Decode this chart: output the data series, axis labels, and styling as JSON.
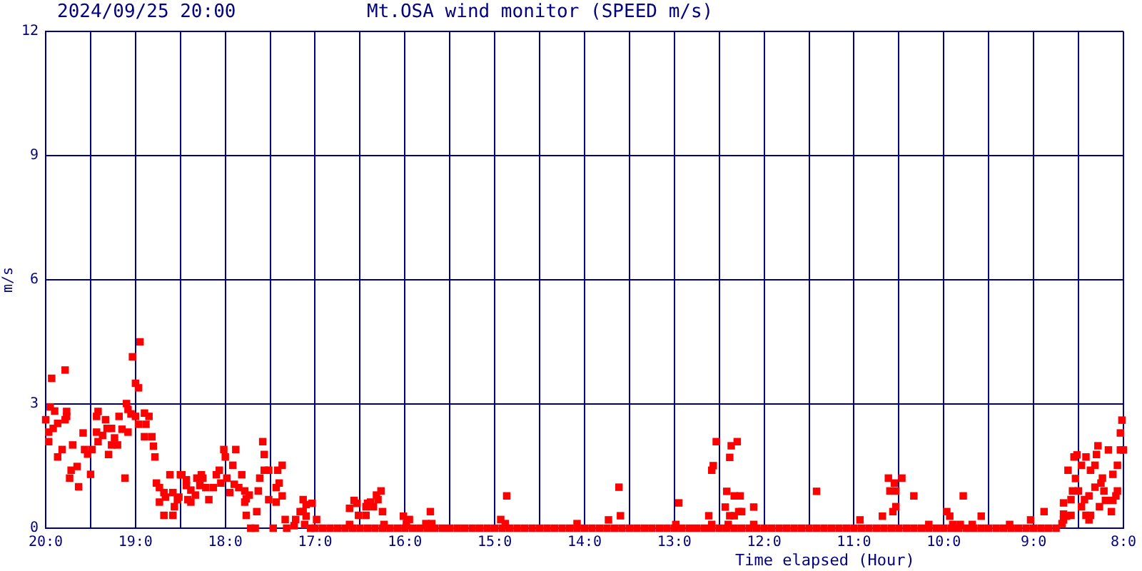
{
  "chart_data": {
    "type": "scatter",
    "title": "Mt.OSA wind monitor (SPEED m/s)",
    "subtitle": "2024/09/25 20:00",
    "xlabel": "Time elapsed (Hour)",
    "ylabel": "m/s",
    "color": "#ff0000",
    "marker": "square",
    "grid": true,
    "xlim": [
      "2024-09-25T20:00",
      "2024-09-25T08:00"
    ],
    "xticks": [
      {
        "value": "2024-09-25T20:00",
        "label": "20:0"
      },
      {
        "value": "2024-09-25T19:30",
        "label": null
      },
      {
        "value": "2024-09-25T19:00",
        "label": "19:0"
      },
      {
        "value": "2024-09-25T18:30",
        "label": null
      },
      {
        "value": "2024-09-25T18:00",
        "label": "18:0"
      },
      {
        "value": "2024-09-25T17:30",
        "label": null
      },
      {
        "value": "2024-09-25T17:00",
        "label": "17:0"
      },
      {
        "value": "2024-09-25T16:30",
        "label": null
      },
      {
        "value": "2024-09-25T16:00",
        "label": "16:0"
      },
      {
        "value": "2024-09-25T15:30",
        "label": null
      },
      {
        "value": "2024-09-25T15:00",
        "label": "15:0"
      },
      {
        "value": "2024-09-25T14:30",
        "label": null
      },
      {
        "value": "2024-09-25T14:00",
        "label": "14:0"
      },
      {
        "value": "2024-09-25T13:30",
        "label": null
      },
      {
        "value": "2024-09-25T13:00",
        "label": "13:0"
      },
      {
        "value": "2024-09-25T12:30",
        "label": null
      },
      {
        "value": "2024-09-25T12:00",
        "label": "12:0"
      },
      {
        "value": "2024-09-25T11:30",
        "label": null
      },
      {
        "value": "2024-09-25T11:00",
        "label": "11:0"
      },
      {
        "value": "2024-09-25T10:30",
        "label": null
      },
      {
        "value": "2024-09-25T10:00",
        "label": "10:0"
      },
      {
        "value": "2024-09-25T09:30",
        "label": null
      },
      {
        "value": "2024-09-25T09:00",
        "label": "9:0"
      },
      {
        "value": "2024-09-25T08:30",
        "label": null
      },
      {
        "value": "2024-09-25T08:00",
        "label": "8:0"
      }
    ],
    "ylim": [
      0,
      12
    ],
    "yticks": [
      0,
      3,
      6,
      9,
      12
    ],
    "x": [
      "2024-09-25T20:00",
      "2024-09-25T19:58",
      "2024-09-25T19:58",
      "2024-09-25T19:57",
      "2024-09-25T19:56",
      "2024-09-25T19:55",
      "2024-09-25T19:54",
      "2024-09-25T19:52",
      "2024-09-25T19:52",
      "2024-09-25T19:49",
      "2024-09-25T19:47",
      "2024-09-25T19:47",
      "2024-09-25T19:46",
      "2024-09-25T19:46",
      "2024-09-25T19:44",
      "2024-09-25T19:43",
      "2024-09-25T19:42",
      "2024-09-25T19:39",
      "2024-09-25T19:38",
      "2024-09-25T19:35",
      "2024-09-25T19:34",
      "2024-09-25T19:32",
      "2024-09-25T19:30",
      "2024-09-25T19:29",
      "2024-09-25T19:26",
      "2024-09-25T19:26",
      "2024-09-25T19:25",
      "2024-09-25T19:25",
      "2024-09-25T19:22",
      "2024-09-25T19:20",
      "2024-09-25T19:19",
      "2024-09-25T19:18",
      "2024-09-25T19:16",
      "2024-09-25T19:16",
      "2024-09-25T19:14",
      "2024-09-25T19:12",
      "2024-09-25T19:11",
      "2024-09-25T19:09",
      "2024-09-25T19:07",
      "2024-09-25T19:06",
      "2024-09-25T19:05",
      "2024-09-25T19:05",
      "2024-09-25T19:03",
      "2024-09-25T19:02",
      "2024-09-25T19:00",
      "2024-09-25T19:00",
      "2024-09-25T18:58",
      "2024-09-25T18:58",
      "2024-09-25T18:57",
      "2024-09-25T18:54",
      "2024-09-25T18:54",
      "2024-09-25T18:53",
      "2024-09-25T18:51",
      "2024-09-25T18:49",
      "2024-09-25T18:48",
      "2024-09-25T18:47",
      "2024-09-25T18:46",
      "2024-09-25T18:44",
      "2024-09-25T18:44",
      "2024-09-25T18:41",
      "2024-09-25T18:41",
      "2024-09-25T18:40",
      "2024-09-25T18:37",
      "2024-09-25T18:35",
      "2024-09-25T18:35",
      "2024-09-25T18:34",
      "2024-09-25T18:32",
      "2024-09-25T18:31",
      "2024-09-25T18:29",
      "2024-09-25T18:26",
      "2024-09-25T18:30",
      "2024-09-25T18:26",
      "2024-09-25T18:25",
      "2024-09-25T18:23",
      "2024-09-25T18:23",
      "2024-09-25T18:20",
      "2024-09-25T18:19",
      "2024-09-25T18:17",
      "2024-09-25T18:16",
      "2024-09-25T18:15",
      "2024-09-25T18:13",
      "2024-09-25T18:11",
      "2024-09-25T18:08",
      "2024-09-25T18:06",
      "2024-09-25T18:04",
      "2024-09-25T18:03",
      "2024-09-25T18:01",
      "2024-09-25T18:00",
      "2024-09-25T17:59",
      "2024-09-25T17:57",
      "2024-09-25T17:55",
      "2024-09-25T17:54",
      "2024-09-25T17:53",
      "2024-09-25T17:51",
      "2024-09-25T17:49",
      "2024-09-25T17:47",
      "2024-09-25T17:47",
      "2024-09-25T17:46",
      "2024-09-25T17:46",
      "2024-09-25T17:44",
      "2024-09-25T17:43",
      "2024-09-25T17:40",
      "2024-09-25T17:39",
      "2024-09-25T17:38",
      "2024-09-25T17:37",
      "2024-09-25T17:35",
      "2024-09-25T17:34",
      "2024-09-25T17:34",
      "2024-09-25T17:31",
      "2024-09-25T17:31",
      "2024-09-25T17:28",
      "2024-09-25T17:26",
      "2024-09-25T17:26",
      "2024-09-25T17:25",
      "2024-09-25T17:24",
      "2024-09-25T17:22",
      "2024-09-25T17:22",
      "2024-09-25T17:20",
      "2024-09-25T17:19",
      "2024-09-25T17:14",
      "2024-09-25T17:13",
      "2024-09-25T17:10",
      "2024-09-25T17:08",
      "2024-09-25T17:08",
      "2024-09-25T17:07",
      "2024-09-25T17:06",
      "2024-09-25T17:06",
      "2024-09-25T17:03",
      "2024-09-25T17:02",
      "2024-09-25T16:59",
      "2024-09-25T16:37",
      "2024-09-25T16:37",
      "2024-09-25T16:34",
      "2024-09-25T16:32",
      "2024-09-25T16:31",
      "2024-09-25T16:26",
      "2024-09-25T16:26",
      "2024-09-25T16:25",
      "2024-09-25T16:23",
      "2024-09-25T16:21",
      "2024-09-25T16:19",
      "2024-09-25T16:18",
      "2024-09-25T16:16",
      "2024-09-25T16:15",
      "2024-09-25T16:14",
      "2024-09-25T16:01",
      "2024-09-25T15:59",
      "2024-09-25T15:57",
      "2024-09-25T15:46",
      "2024-09-25T15:43",
      "2024-09-25T15:42",
      "2024-09-25T14:56",
      "2024-09-25T14:53",
      "2024-09-25T14:52",
      "2024-09-25T14:05",
      "2024-09-25T13:44",
      "2024-09-25T13:37",
      "2024-09-25T13:36",
      "2024-09-25T12:59",
      "2024-09-25T12:57",
      "2024-09-25T12:37",
      "2024-09-25T12:35",
      "2024-09-25T12:35",
      "2024-09-25T12:34",
      "2024-09-25T12:32",
      "2024-09-25T12:26",
      "2024-09-25T12:25",
      "2024-09-25T12:24",
      "2024-09-25T12:23",
      "2024-09-25T12:23",
      "2024-09-25T12:22",
      "2024-09-25T12:20",
      "2024-09-25T12:20",
      "2024-09-25T12:18",
      "2024-09-25T12:17",
      "2024-09-25T12:16",
      "2024-09-25T12:15",
      "2024-09-25T12:07",
      "2024-09-25T12:07",
      "2024-09-25T11:25",
      "2024-09-25T10:56",
      "2024-09-25T10:41",
      "2024-09-25T10:37",
      "2024-09-25T10:36",
      "2024-09-25T10:34",
      "2024-09-25T10:33",
      "2024-09-25T10:32",
      "2024-09-25T10:32",
      "2024-09-25T10:28",
      "2024-09-25T10:20",
      "2024-09-25T10:10",
      "2024-09-25T09:58",
      "2024-09-25T09:56",
      "2024-09-25T09:54",
      "2024-09-25T09:49",
      "2024-09-25T09:47",
      "2024-09-25T09:41",
      "2024-09-25T09:35",
      "2024-09-25T09:16",
      "2024-09-25T09:02",
      "2024-09-25T08:53",
      "2024-09-25T08:41",
      "2024-09-25T08:40",
      "2024-09-25T08:40",
      "2024-09-25T08:40",
      "2024-09-25T08:38",
      "2024-09-25T08:37",
      "2024-09-25T08:35",
      "2024-09-25T08:35",
      "2024-09-25T08:34",
      "2024-09-25T08:33",
      "2024-09-25T08:32",
      "2024-09-25T08:31",
      "2024-09-25T08:30",
      "2024-09-25T08:28",
      "2024-09-25T08:28",
      "2024-09-25T08:26",
      "2024-09-25T08:25",
      "2024-09-25T08:25",
      "2024-09-25T08:23",
      "2024-09-25T08:23",
      "2024-09-25T08:22",
      "2024-09-25T08:22",
      "2024-09-25T08:19",
      "2024-09-25T08:19",
      "2024-09-25T08:18",
      "2024-09-25T08:17",
      "2024-09-25T08:16",
      "2024-09-25T08:15",
      "2024-09-25T08:14",
      "2024-09-25T08:13",
      "2024-09-25T08:12",
      "2024-09-25T08:10",
      "2024-09-25T08:08",
      "2024-09-25T08:07",
      "2024-09-25T08:07",
      "2024-09-25T08:05",
      "2024-09-25T08:04",
      "2024-09-25T08:04",
      "2024-09-25T08:02",
      "2024-09-25T08:02",
      "2024-09-25T08:01",
      "2024-09-25T08:00",
      "2024-09-25T17:00",
      "2024-09-25T16:55",
      "2024-09-25T16:50",
      "2024-09-25T16:45",
      "2024-09-25T16:40",
      "2024-09-25T16:35",
      "2024-09-25T16:30",
      "2024-09-25T16:25",
      "2024-09-25T16:20",
      "2024-09-25T16:15",
      "2024-09-25T16:10",
      "2024-09-25T16:05",
      "2024-09-25T16:00",
      "2024-09-25T15:55",
      "2024-09-25T15:50",
      "2024-09-25T15:45",
      "2024-09-25T15:40",
      "2024-09-25T15:35",
      "2024-09-25T15:30",
      "2024-09-25T15:25",
      "2024-09-25T15:20",
      "2024-09-25T15:15",
      "2024-09-25T15:10",
      "2024-09-25T15:05",
      "2024-09-25T15:00",
      "2024-09-25T14:55",
      "2024-09-25T14:50",
      "2024-09-25T14:45",
      "2024-09-25T14:40",
      "2024-09-25T14:35",
      "2024-09-25T14:30",
      "2024-09-25T14:25",
      "2024-09-25T14:20",
      "2024-09-25T14:15",
      "2024-09-25T14:10",
      "2024-09-25T14:05",
      "2024-09-25T14:00",
      "2024-09-25T13:55",
      "2024-09-25T13:50",
      "2024-09-25T13:45",
      "2024-09-25T13:40",
      "2024-09-25T13:35",
      "2024-09-25T13:30",
      "2024-09-25T13:25",
      "2024-09-25T13:20",
      "2024-09-25T13:15",
      "2024-09-25T13:10",
      "2024-09-25T13:05",
      "2024-09-25T13:00",
      "2024-09-25T12:55",
      "2024-09-25T12:50",
      "2024-09-25T12:45",
      "2024-09-25T12:40",
      "2024-09-25T12:35",
      "2024-09-25T12:30",
      "2024-09-25T12:25",
      "2024-09-25T12:20",
      "2024-09-25T12:15",
      "2024-09-25T12:10",
      "2024-09-25T12:05",
      "2024-09-25T12:00",
      "2024-09-25T11:55",
      "2024-09-25T11:50",
      "2024-09-25T11:45",
      "2024-09-25T11:40",
      "2024-09-25T11:35",
      "2024-09-25T11:30",
      "2024-09-25T11:25",
      "2024-09-25T11:20",
      "2024-09-25T11:15",
      "2024-09-25T11:10",
      "2024-09-25T11:05",
      "2024-09-25T11:00",
      "2024-09-25T10:55",
      "2024-09-25T10:50",
      "2024-09-25T10:45",
      "2024-09-25T10:40",
      "2024-09-25T10:35",
      "2024-09-25T10:30",
      "2024-09-25T10:25",
      "2024-09-25T10:20",
      "2024-09-25T10:15",
      "2024-09-25T10:10",
      "2024-09-25T10:05",
      "2024-09-25T10:00",
      "2024-09-25T09:55",
      "2024-09-25T09:50",
      "2024-09-25T09:45",
      "2024-09-25T09:40",
      "2024-09-25T09:35",
      "2024-09-25T09:30",
      "2024-09-25T09:25",
      "2024-09-25T09:20",
      "2024-09-25T09:15",
      "2024-09-25T09:10",
      "2024-09-25T09:05",
      "2024-09-25T09:00",
      "2024-09-25T08:55",
      "2024-09-25T08:50",
      "2024-09-25T08:45"
    ],
    "values": [
      2.62,
      2.32,
      2.09,
      2.93,
      3.62,
      2.41,
      2.83,
      2.53,
      1.72,
      1.9,
      2.62,
      3.82,
      2.82,
      2.7,
      1.21,
      1.4,
      2.01,
      1.49,
      1.0,
      2.3,
      1.9,
      1.79,
      1.3,
      1.9,
      2.7,
      2.32,
      2.09,
      2.82,
      2.24,
      2.62,
      2.41,
      1.78,
      2.41,
      2.01,
      2.18,
      2.01,
      2.7,
      2.39,
      1.21,
      3.01,
      2.87,
      2.32,
      2.76,
      4.14,
      3.5,
      2.7,
      2.51,
      3.39,
      4.5,
      2.78,
      2.21,
      2.51,
      2.7,
      2.21,
      1.98,
      1.72,
      1.09,
      0.98,
      0.63,
      0.31,
      0.86,
      0.75,
      1.29,
      0.31,
      0.86,
      0.52,
      0.69,
      0.75,
      1.29,
      1.03,
      1.29,
      1.17,
      0.69,
      0.92,
      0.63,
      0.8,
      1.21,
      1.03,
      1.29,
      1.21,
      0.98,
      0.69,
      0.98,
      1.29,
      1.4,
      1.09,
      1.9,
      1.72,
      1.21,
      0.86,
      1.52,
      1.06,
      1.9,
      0.98,
      1.29,
      0.9,
      0.63,
      0.31,
      0.71,
      0.8,
      0,
      0,
      0.4,
      0.9,
      1.21,
      2.09,
      1.78,
      1.4,
      1.4,
      0.69,
      0,
      0.63,
      0.98,
      1.4,
      1.09,
      1.52,
      0.78,
      0.21,
      0,
      0.06,
      0.21,
      0.4,
      0.69,
      0.4,
      0.09,
      0.57,
      0.29,
      0,
      0.6,
      0.21,
      0.09,
      0.48,
      0.67,
      0.6,
      0.31,
      0.31,
      0.52,
      0.6,
      0.63,
      0.52,
      0.8,
      0.69,
      0.9,
      0.4,
      0.09,
      0.29,
      0.11,
      0.21,
      0.11,
      0.4,
      0.11,
      0.21,
      0.11,
      0.78,
      0.11,
      0.2,
      0.99,
      0.3,
      0.09,
      0.61,
      0.3,
      0.09,
      1.4,
      1.51,
      2.09,
      0.51,
      0.89,
      0.09,
      0.3,
      1.71,
      1.99,
      0.78,
      0.3,
      2.09,
      0.4,
      0.78,
      0.4,
      0.51,
      0.09,
      0.89,
      0.2,
      0.29,
      1.21,
      0.9,
      0.4,
      1.09,
      0.9,
      0.52,
      1.21,
      0.78,
      0.09,
      0.4,
      0.29,
      0.09,
      0.09,
      0.78,
      0.09,
      0.29,
      0.09,
      0.2,
      0.4,
      0.11,
      0.2,
      0.61,
      0.34,
      0.29,
      1.4,
      0.69,
      0.31,
      0.9,
      1.72,
      1.2,
      1.77,
      0.9,
      0.52,
      1.52,
      0.69,
      1.72,
      0.31,
      0.78,
      0.2,
      1.4,
      0.31,
      1.52,
      0.99,
      1.78,
      1.99,
      0.52,
      1.09,
      1.21,
      0.9,
      0.67,
      1.89,
      0.4,
      1.3,
      0.67,
      0.78,
      0.9,
      1.52,
      2.3,
      1.89,
      2.61,
      1.89,
      0,
      0,
      0,
      0,
      0,
      0,
      0,
      0,
      0,
      0,
      0,
      0,
      0,
      0,
      0,
      0,
      0,
      0,
      0,
      0,
      0,
      0,
      0,
      0,
      0,
      0,
      0,
      0,
      0,
      0,
      0,
      0,
      0,
      0,
      0,
      0,
      0,
      0,
      0,
      0,
      0,
      0,
      0,
      0,
      0,
      0,
      0,
      0,
      0,
      0,
      0,
      0,
      0,
      0,
      0,
      0,
      0,
      0,
      0,
      0,
      0,
      0,
      0,
      0,
      0,
      0,
      0,
      0,
      0,
      0,
      0,
      0,
      0,
      0,
      0,
      0,
      0,
      0,
      0,
      0,
      0,
      0,
      0,
      0,
      0,
      0,
      0,
      0,
      0,
      0,
      0,
      0,
      0,
      0,
      0,
      0,
      0,
      0,
      0,
      0
    ]
  }
}
